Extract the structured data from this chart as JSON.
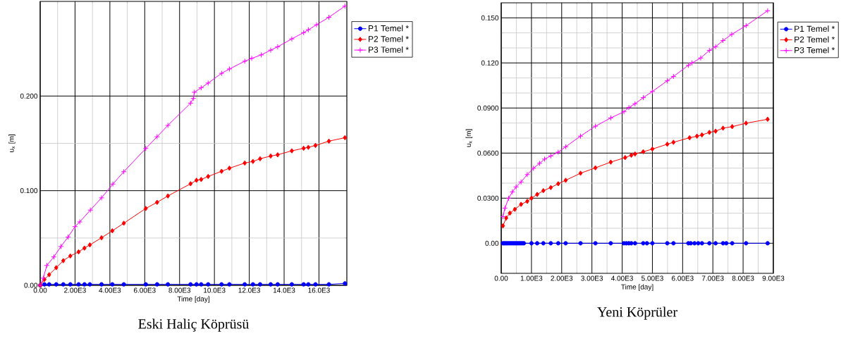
{
  "chart_data": [
    {
      "type": "line",
      "title": "Eski Haliç Köprüsü",
      "xlabel": "Time [day]",
      "ylabel": "u$_{x}$ [m]",
      "xlim": [
        0,
        17600
      ],
      "ylim": [
        0,
        0.3
      ],
      "xticks": [
        {
          "value": 0,
          "label": "0.00"
        },
        {
          "value": 2000,
          "label": "2.00E3"
        },
        {
          "value": 4000,
          "label": "4.00E3"
        },
        {
          "value": 6000,
          "label": "6.00E3"
        },
        {
          "value": 8000,
          "label": "8.00E3"
        },
        {
          "value": 10000,
          "label": "10.0E3"
        },
        {
          "value": 12000,
          "label": "12.0E3"
        },
        {
          "value": 14000,
          "label": "14.0E3"
        },
        {
          "value": 16000,
          "label": "16.0E3"
        }
      ],
      "yticks": [
        {
          "value": 0,
          "label": "0.00"
        },
        {
          "value": 0.1,
          "label": "0.100"
        },
        {
          "value": 0.2,
          "label": "0.200"
        }
      ],
      "grid": true,
      "legend": "right",
      "line_style": "solid",
      "series": [
        {
          "name": "P1 Temel *",
          "color": "#0000ff",
          "marker": "circle",
          "x": [
            0,
            243,
            514,
            920,
            1325,
            1730,
            2205,
            2540,
            2850,
            3520,
            4140,
            4800,
            6060,
            6710,
            7330,
            8630,
            8970,
            9240,
            9640,
            10410,
            10860,
            11740,
            12210,
            12620,
            13230,
            13630,
            14440,
            15120,
            15390,
            15800,
            16570,
            17490
          ],
          "values": [
            0,
            0.001,
            0.001,
            0.001,
            0.001,
            0.001,
            0.001,
            0.001,
            0.001,
            0.001,
            0.001,
            0.001,
            0.001,
            0.001,
            0.001,
            0.001,
            0.001,
            0.001,
            0.001,
            0.001,
            0.001,
            0.001,
            0.001,
            0.001,
            0.001,
            0.001,
            0.001,
            0.001,
            0.001,
            0.001,
            0.001,
            0.002
          ]
        },
        {
          "name": "P2 Temel *",
          "color": "#ff0000",
          "marker": "diamond",
          "x": [
            0,
            243,
            514,
            920,
            1325,
            1730,
            2205,
            2540,
            2850,
            3520,
            4140,
            4800,
            6060,
            6710,
            7330,
            8630,
            8970,
            9240,
            9640,
            10410,
            10860,
            11740,
            12210,
            12620,
            13230,
            13630,
            14440,
            15120,
            15390,
            15800,
            16570,
            17490
          ],
          "values": [
            0,
            0.0062,
            0.0112,
            0.0186,
            0.026,
            0.031,
            0.0353,
            0.0393,
            0.0427,
            0.0502,
            0.0576,
            0.0656,
            0.0812,
            0.0877,
            0.0944,
            0.1073,
            0.111,
            0.1118,
            0.115,
            0.1205,
            0.1237,
            0.1292,
            0.1309,
            0.1337,
            0.1366,
            0.1379,
            0.1421,
            0.1448,
            0.1458,
            0.1478,
            0.1523,
            0.156
          ]
        },
        {
          "name": "P3 Temel *",
          "color": "#ff00ff",
          "marker": "cross",
          "x": [
            0,
            176,
            380,
            785,
            1190,
            1600,
            2000,
            2270,
            2880,
            3520,
            4170,
            4800,
            6060,
            6710,
            7330,
            8630,
            8790,
            8850,
            9240,
            9640,
            10410,
            10860,
            11740,
            12140,
            12690,
            13230,
            13630,
            14440,
            15120,
            15390,
            15860,
            16570,
            17490
          ],
          "values": [
            0,
            0.0075,
            0.021,
            0.03,
            0.041,
            0.051,
            0.062,
            0.067,
            0.0795,
            0.0924,
            0.107,
            0.12,
            0.1446,
            0.157,
            0.169,
            0.1925,
            0.1975,
            0.204,
            0.2087,
            0.2137,
            0.224,
            0.2286,
            0.2368,
            0.2398,
            0.2435,
            0.2485,
            0.252,
            0.2604,
            0.267,
            0.27,
            0.2753,
            0.2832,
            0.295
          ]
        }
      ]
    },
    {
      "type": "line",
      "title": "Yeni Köprüler",
      "xlabel": "Time [day]",
      "ylabel": "u$_{x}$ [m]",
      "xlim": [
        0,
        9000
      ],
      "ylim": [
        -0.02,
        0.16
      ],
      "xticks": [
        {
          "value": 0,
          "label": "0.00"
        },
        {
          "value": 1000,
          "label": "1.00E3"
        },
        {
          "value": 2000,
          "label": "2.00E3"
        },
        {
          "value": 3000,
          "label": "3.00E3"
        },
        {
          "value": 4000,
          "label": "4.00E3"
        },
        {
          "value": 5000,
          "label": "5.00E3"
        },
        {
          "value": 6000,
          "label": "6.00E3"
        },
        {
          "value": 7000,
          "label": "7.00E3"
        },
        {
          "value": 8000,
          "label": "8.00E3"
        },
        {
          "value": 9000,
          "label": "9.00E3"
        }
      ],
      "yticks": [
        {
          "value": 0,
          "label": "0.00"
        },
        {
          "value": 0.03,
          "label": "0.0300"
        },
        {
          "value": 0.06,
          "label": "0.0600"
        },
        {
          "value": 0.09,
          "label": "0.0900"
        },
        {
          "value": 0.12,
          "label": "0.120"
        },
        {
          "value": 0.15,
          "label": "0.150"
        }
      ],
      "grid": true,
      "legend": "right",
      "line_style": "solid",
      "series": [
        {
          "name": "P1 Temel *",
          "color": "#0000ff",
          "marker": "circle",
          "x": [
            57,
            100,
            150,
            200,
            250,
            300,
            350,
            400,
            450,
            500,
            550,
            600,
            650,
            700,
            750,
            1000,
            1189,
            1393,
            1640,
            1885,
            2131,
            2623,
            3115,
            3623,
            4057,
            4139,
            4221,
            4303,
            4426,
            4697,
            4820,
            5000,
            5492,
            5697,
            6189,
            6270,
            6393,
            6516,
            6639,
            6885,
            7090,
            7336,
            7443,
            7639,
            8098,
            8811
          ],
          "values": [
            0,
            0,
            0,
            0,
            0,
            0,
            0,
            0,
            0,
            0,
            0,
            0,
            0,
            0,
            0,
            0,
            0,
            0,
            0,
            0,
            0,
            0,
            0,
            0,
            0,
            0,
            0,
            0,
            0,
            0,
            0,
            0,
            0,
            0,
            0,
            0,
            0,
            0,
            0,
            0,
            0,
            0,
            0,
            0,
            0,
            0
          ]
        },
        {
          "name": "P2 Temel *",
          "color": "#ff0000",
          "marker": "diamond",
          "x": [
            57,
            164,
            287,
            451,
            656,
            861,
            1000,
            1189,
            1393,
            1640,
            1885,
            2131,
            2623,
            3115,
            3623,
            4098,
            4303,
            4426,
            4697,
            5000,
            5492,
            5697,
            6230,
            6475,
            6639,
            6885,
            7090,
            7336,
            7639,
            8098,
            8811
          ],
          "values": [
            0.0116,
            0.0168,
            0.0201,
            0.0226,
            0.0259,
            0.0279,
            0.03,
            0.0325,
            0.035,
            0.0371,
            0.0396,
            0.0419,
            0.0466,
            0.0502,
            0.054,
            0.057,
            0.0586,
            0.0594,
            0.0609,
            0.0627,
            0.0659,
            0.0672,
            0.0702,
            0.0713,
            0.0721,
            0.0738,
            0.0746,
            0.0766,
            0.0776,
            0.0799,
            0.0825
          ]
        },
        {
          "name": "P3 Temel *",
          "color": "#ff00ff",
          "marker": "cross",
          "x": [
            57,
            123,
            246,
            369,
            492,
            656,
            861,
            1066,
            1270,
            1434,
            1640,
            1885,
            2131,
            2623,
            3115,
            3623,
            4057,
            4221,
            4426,
            4697,
            5000,
            5492,
            5697,
            6189,
            6311,
            6598,
            6885,
            7090,
            7336,
            7623,
            8098,
            8811
          ],
          "values": [
            0.0177,
            0.0234,
            0.03,
            0.0342,
            0.0375,
            0.0408,
            0.0457,
            0.0499,
            0.0532,
            0.056,
            0.0581,
            0.0606,
            0.0642,
            0.0713,
            0.0779,
            0.0834,
            0.0875,
            0.0903,
            0.0928,
            0.0969,
            0.101,
            0.1081,
            0.111,
            0.1184,
            0.12,
            0.1233,
            0.1283,
            0.1308,
            0.1349,
            0.139,
            0.1448,
            0.1547
          ]
        }
      ]
    }
  ]
}
